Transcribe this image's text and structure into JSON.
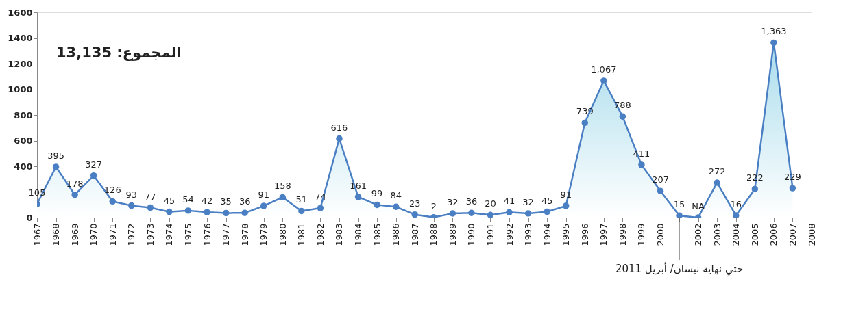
{
  "chart_data": {
    "type": "area",
    "categories": [
      "1967",
      "1968",
      "1969",
      "1970",
      "1971",
      "1972",
      "1973",
      "1974",
      "1975",
      "1976",
      "1977",
      "1978",
      "1979",
      "1980",
      "1981",
      "1982",
      "1983",
      "1984",
      "1985",
      "1986",
      "1987",
      "1988",
      "1989",
      "1990",
      "1991",
      "1992",
      "1993",
      "1994",
      "1995",
      "1996",
      "1997",
      "1998",
      "1999",
      "2000",
      null,
      "2002",
      "2003",
      "2004",
      "2005",
      "2006",
      "2007",
      "2008"
    ],
    "series": [
      {
        "color": "#4a7fc4",
        "values": [
          105,
          395,
          178,
          327,
          126,
          93,
          77,
          45,
          54,
          42,
          35,
          36,
          91,
          158,
          51,
          74,
          616,
          161,
          99,
          84,
          23,
          2,
          32,
          36,
          20,
          41,
          32,
          45,
          91,
          739,
          1067,
          788,
          411,
          207,
          15,
          0,
          272,
          16,
          222,
          1363,
          229,
          null
        ],
        "value_labels": [
          "105",
          "395",
          "178",
          "327",
          "126",
          "93",
          "77",
          "45",
          "54",
          "42",
          "35",
          "36",
          "91",
          "158",
          "51",
          "74",
          "616",
          "161",
          "99",
          "84",
          "23",
          "2",
          "32",
          "36",
          "20",
          "41",
          "32",
          "45",
          "91",
          "739",
          "1,067",
          "788",
          "411",
          "207",
          "15",
          "NA",
          "272",
          "16",
          "222",
          "1,363",
          "229",
          null
        ]
      }
    ],
    "ylim": [
      0,
      1600
    ],
    "yticks": [
      0,
      400,
      600,
      800,
      1000,
      1200,
      1400,
      1600
    ],
    "annotations": [
      "المجموع: 13,135",
      "حتي نهاية نيسان/ أبريل 2011"
    ],
    "grid": false,
    "marker": "circle",
    "line_style": "solid"
  }
}
